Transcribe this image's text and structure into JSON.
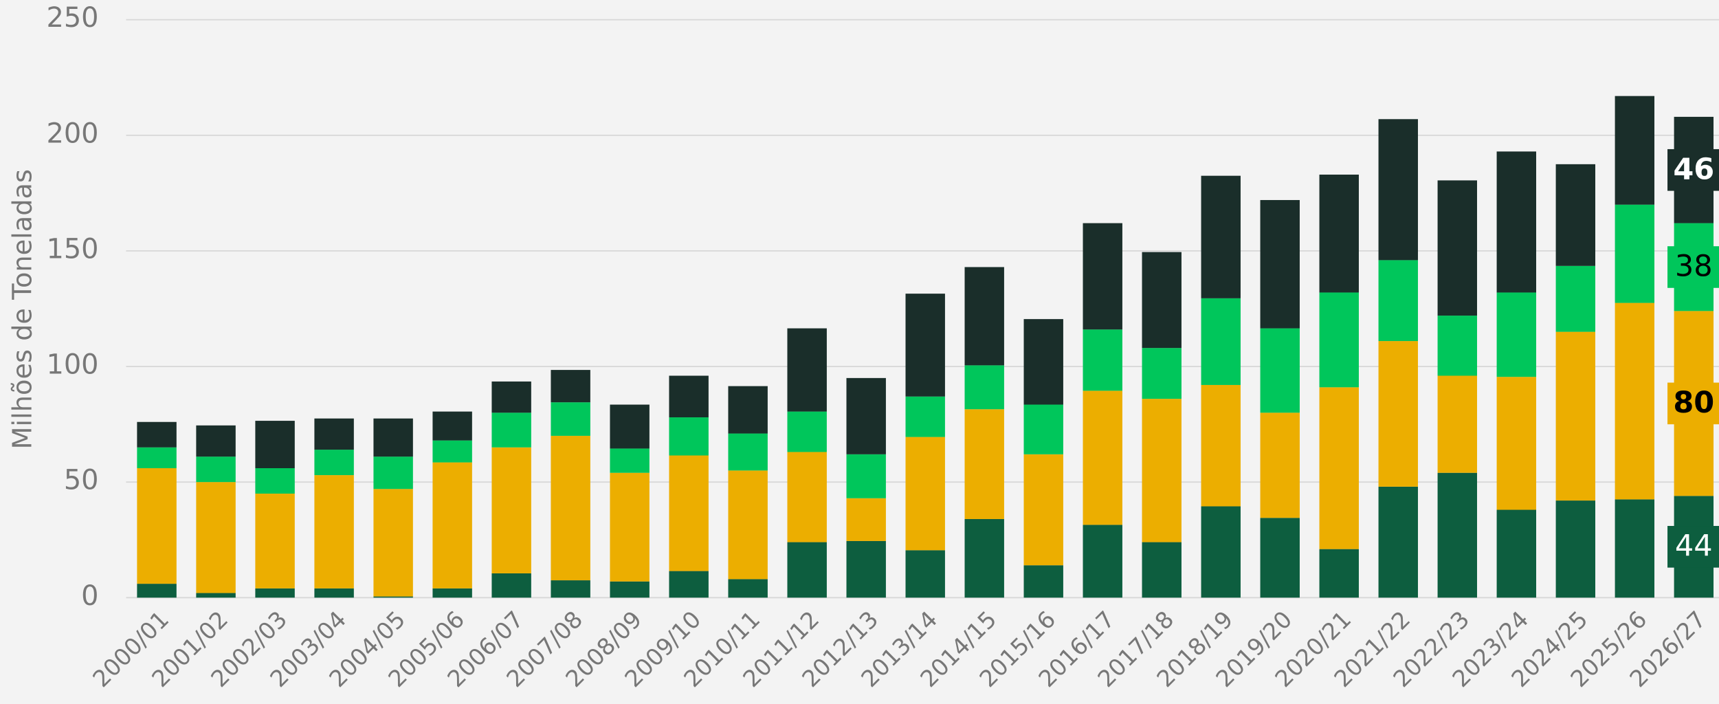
{
  "chart_data": {
    "type": "stacked_bar",
    "y_label": "Milhões de Toneladas",
    "categories": [
      "2000/01",
      "2001/02",
      "2002/03",
      "2003/04",
      "2004/05",
      "2005/06",
      "2006/07",
      "2007/08",
      "2008/09",
      "2009/10",
      "2010/11",
      "2011/12",
      "2012/13",
      "2013/14",
      "2014/15",
      "2015/16",
      "2016/17",
      "2017/18",
      "2018/19",
      "2019/20",
      "2020/21",
      "2021/22",
      "2022/23",
      "2023/24",
      "2024/25",
      "2025/26",
      "2026/27"
    ],
    "series": [
      {
        "color": "#0d5e3f",
        "label_color": "#ffffff",
        "label_bold": false,
        "values": [
          6,
          2,
          4,
          4,
          0.5,
          4,
          10.5,
          7.5,
          7,
          11.5,
          8,
          24,
          24.5,
          20.5,
          34,
          14,
          31.5,
          24,
          39.5,
          34.5,
          21,
          48,
          54,
          38,
          42,
          42.5,
          44
        ]
      },
      {
        "color": "#ecae00",
        "label_color": "#000000",
        "label_bold": true,
        "values": [
          50,
          48,
          41,
          49,
          46.5,
          54.5,
          54.5,
          62.5,
          47,
          50,
          47,
          39,
          18.5,
          49,
          47.5,
          48,
          58,
          62,
          52.5,
          45.5,
          70,
          63,
          42,
          57.5,
          73,
          85,
          80
        ]
      },
      {
        "color": "#00c65b",
        "label_color": "#000000",
        "label_bold": false,
        "values": [
          9,
          11,
          11,
          11,
          14,
          9.5,
          15,
          14.5,
          10.5,
          16.5,
          16,
          17.5,
          19,
          17.5,
          19,
          21.5,
          26.5,
          22,
          37.5,
          36.5,
          41,
          35,
          26,
          36.5,
          28.5,
          42.5,
          38
        ]
      },
      {
        "color": "#1a2e2a",
        "label_color": "#ffffff",
        "label_bold": true,
        "values": [
          11,
          13.5,
          20.5,
          13.5,
          16.5,
          12.5,
          13.5,
          14,
          19,
          18,
          20.5,
          36,
          33,
          44.5,
          42.5,
          37,
          46,
          41.5,
          53,
          55.5,
          51,
          61,
          58.5,
          61,
          44,
          47,
          46
        ]
      }
    ],
    "data_labels": "last",
    "ylim": [
      0,
      250
    ],
    "yticks": [
      0,
      50,
      100,
      150,
      200,
      250
    ],
    "grid": true
  }
}
